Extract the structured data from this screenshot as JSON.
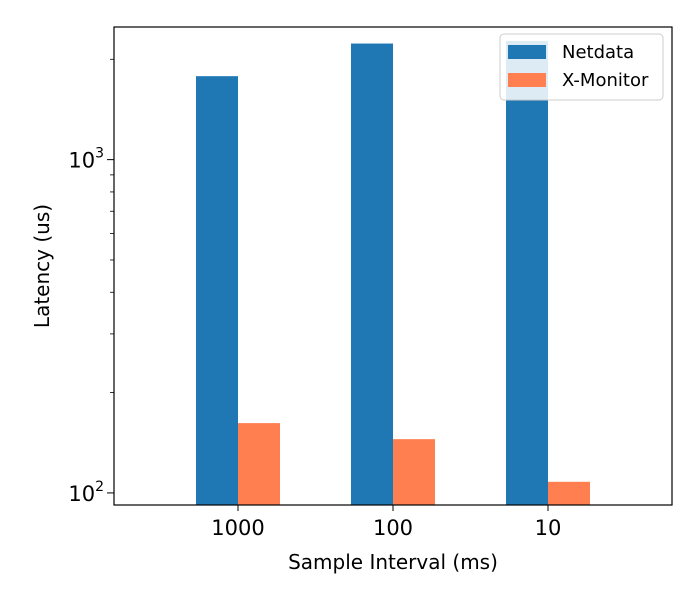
{
  "chart_data": {
    "type": "bar",
    "xlabel": "Sample Interval (ms)",
    "ylabel": "Latency (us)",
    "yscale": "log",
    "ylim": [
      92,
      2500
    ],
    "categories": [
      "1000",
      "100",
      "10"
    ],
    "series": [
      {
        "name": "Netdata",
        "color": "#1f77b4",
        "values": [
          1780,
          2230,
          2270
        ]
      },
      {
        "name": "X-Monitor",
        "color": "#ff7f50",
        "values": [
          162,
          145,
          108
        ]
      }
    ],
    "yticks": [
      {
        "value": 100,
        "base": "10",
        "exp": "2"
      },
      {
        "value": 1000,
        "base": "10",
        "exp": "3"
      }
    ],
    "legend": {
      "placement": "top-right"
    },
    "grid": false
  }
}
